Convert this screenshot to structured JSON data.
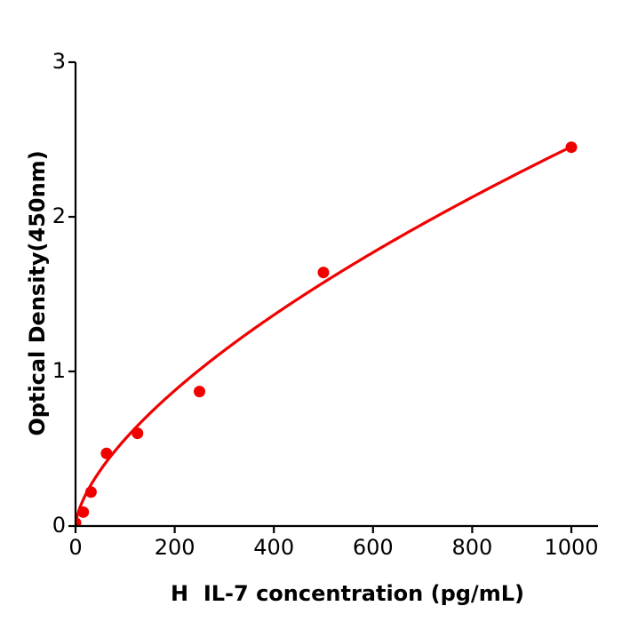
{
  "figure": {
    "background": "#ffffff"
  },
  "chart_data": {
    "type": "scatter",
    "title": "",
    "xlabel": "H  IL-7 concentration (pg/mL)",
    "ylabel": "Optical Density(450nm)",
    "xlim": [
      0,
      1055
    ],
    "ylim": [
      0,
      3
    ],
    "x_ticks": [
      0,
      200,
      400,
      600,
      800,
      1000
    ],
    "y_ticks": [
      0,
      1,
      2,
      3
    ],
    "grid": false,
    "legend_position": "none",
    "marker_color": "#f10000",
    "curve_color": "#f10000",
    "axis_color": "#000000",
    "tick_label_color": "#000000",
    "points": [
      {
        "x": 0,
        "y": 0.02
      },
      {
        "x": 15.6,
        "y": 0.09
      },
      {
        "x": 31.2,
        "y": 0.22
      },
      {
        "x": 62.5,
        "y": 0.47
      },
      {
        "x": 125,
        "y": 0.6
      },
      {
        "x": 250,
        "y": 0.87
      },
      {
        "x": 500,
        "y": 1.64
      },
      {
        "x": 1000,
        "y": 2.45
      }
    ],
    "fit_curve": {
      "model": "power",
      "formula": "y = 0.0295 * x^0.64",
      "a": 0.0295,
      "b": 0.64,
      "x_range": [
        0,
        1000
      ]
    }
  }
}
